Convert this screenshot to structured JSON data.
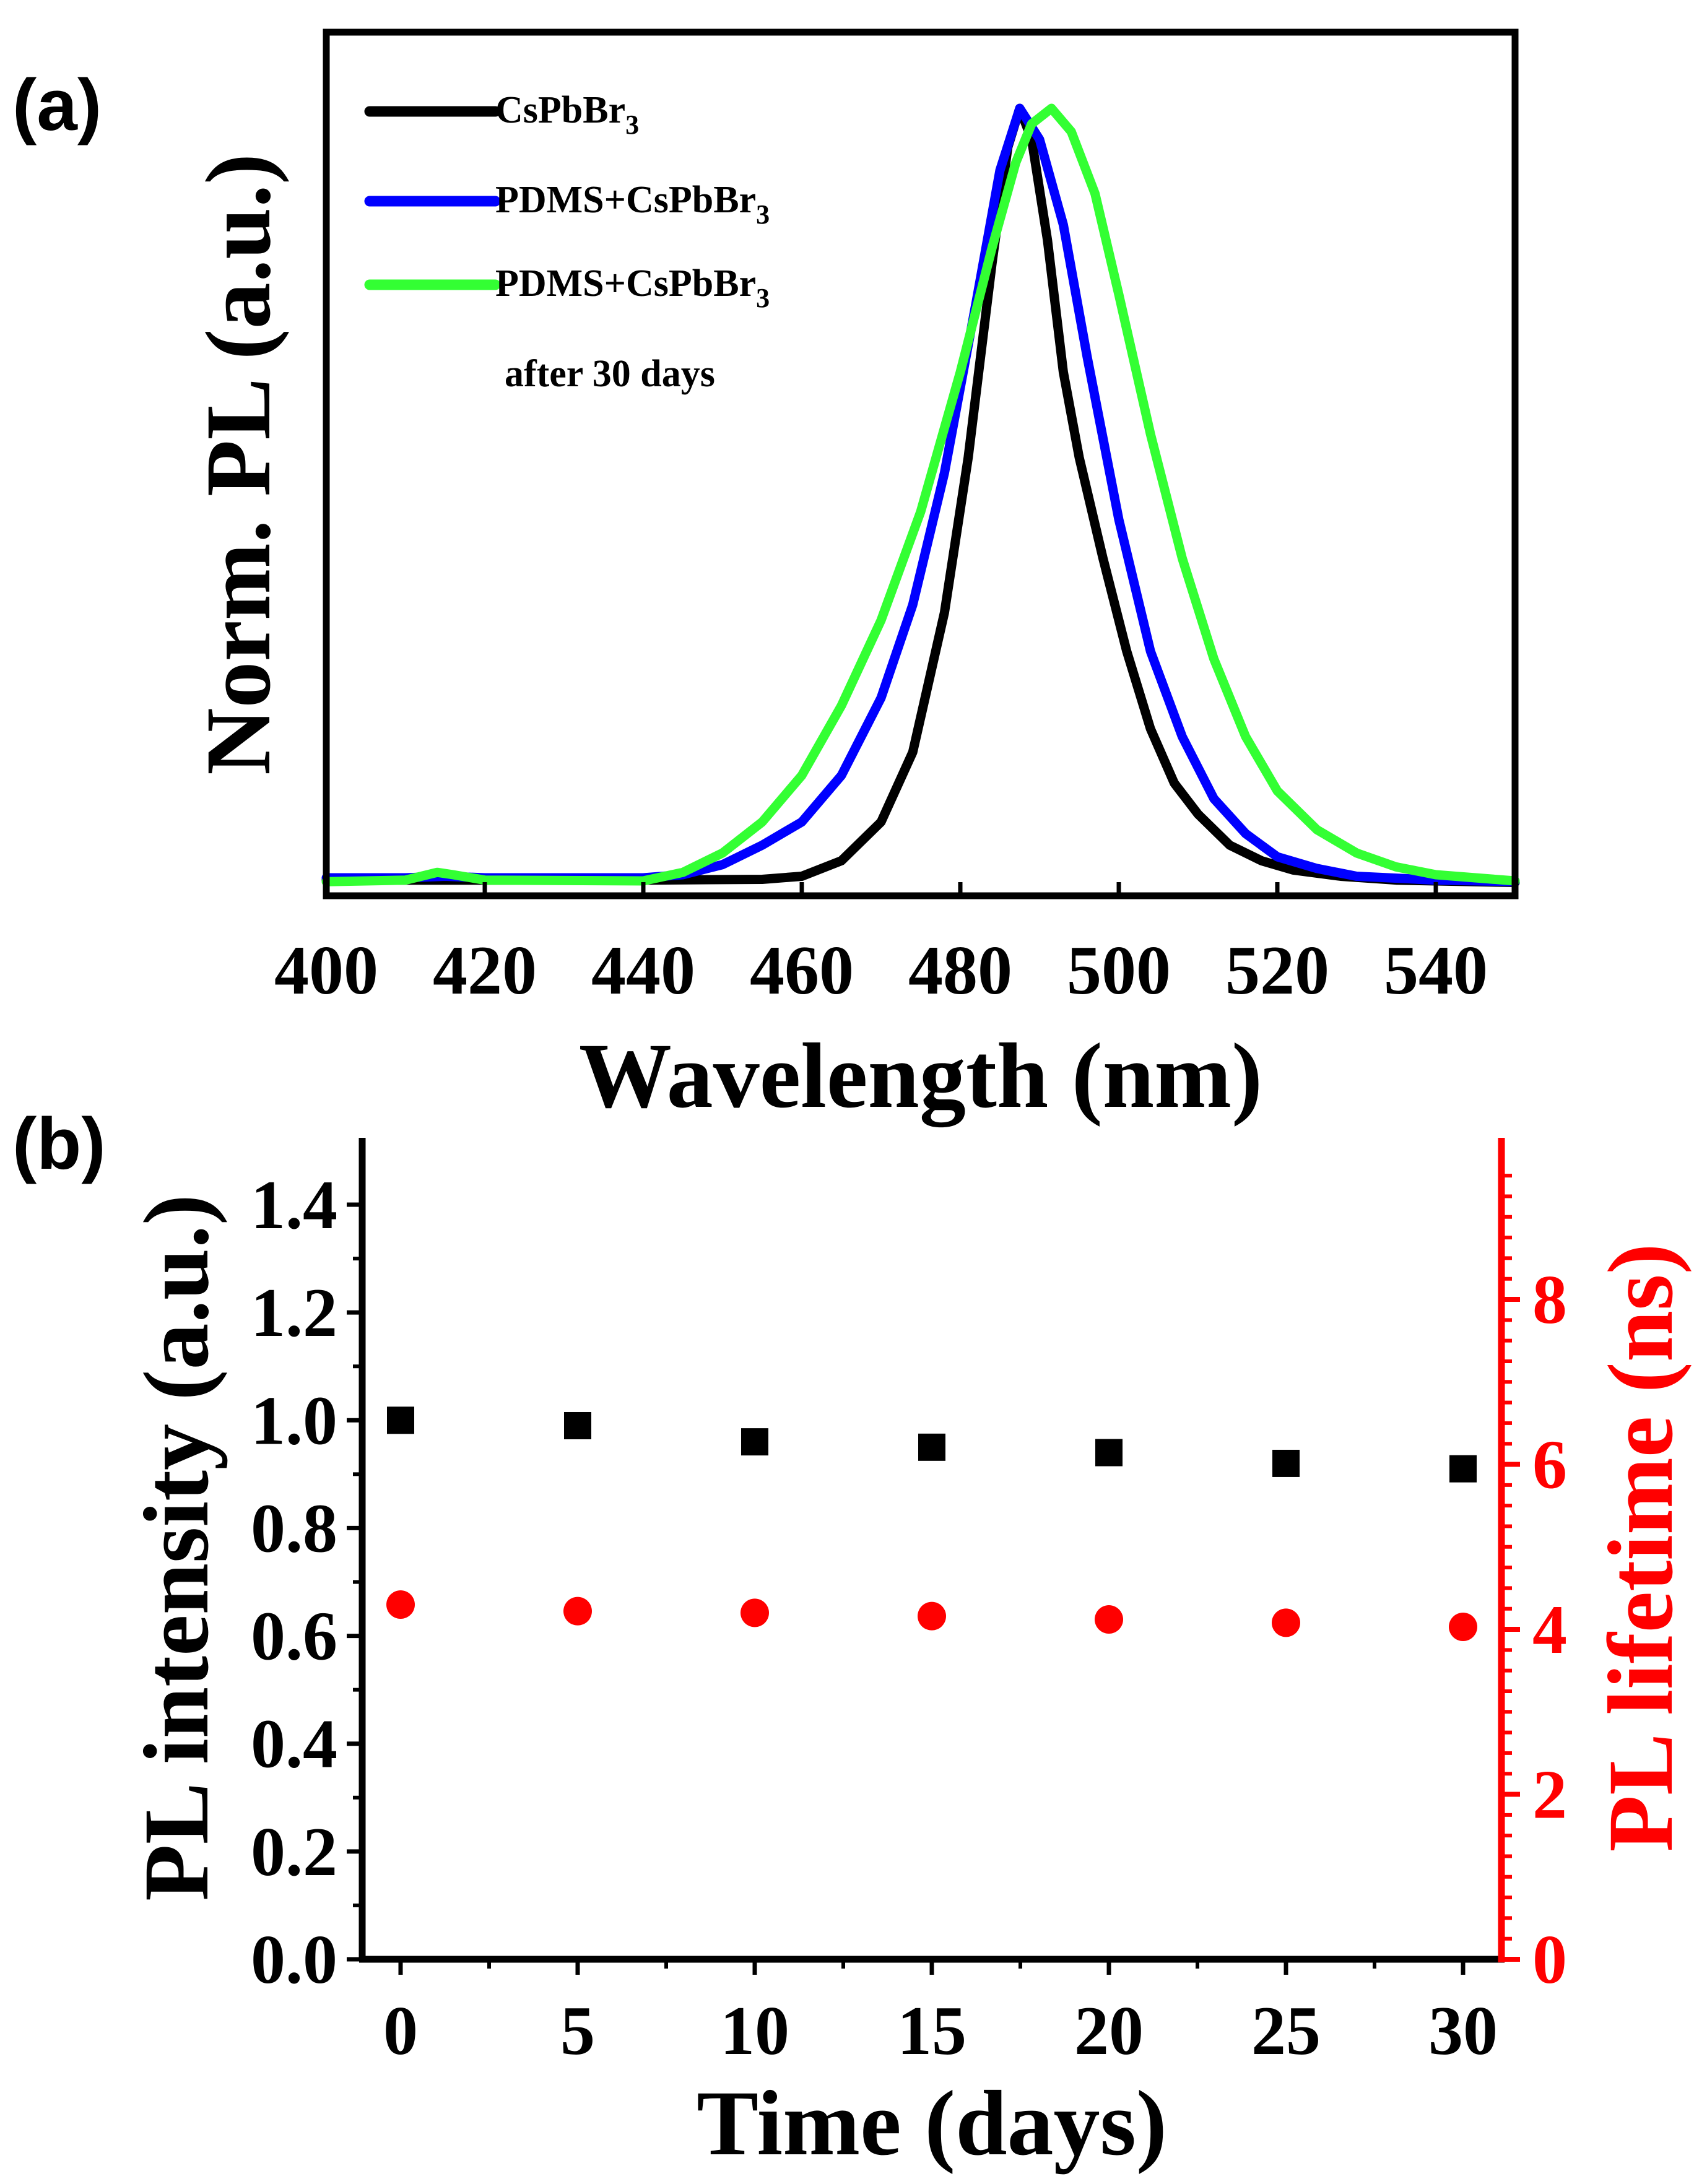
{
  "panels": {
    "a": "(a)",
    "b": "(b)"
  },
  "chart_data": [
    {
      "type": "line",
      "title": "",
      "xlabel": "Wavelength (nm)",
      "ylabel": "Norm. PL (a.u.)",
      "xlim": [
        400,
        550
      ],
      "ylim": [
        0,
        1.0
      ],
      "x_ticks": [
        "400",
        "420",
        "440",
        "460",
        "480",
        "500",
        "520",
        "540"
      ],
      "legend_position": "top-left",
      "series": [
        {
          "name": "CsPbBr3",
          "legend_main": "CsPbBr",
          "legend_sub": "3",
          "legend_note": "",
          "color": "#000000",
          "x": [
            400,
            440,
            455,
            460,
            465,
            470,
            474,
            478,
            481,
            484,
            486,
            487.5,
            489,
            491,
            493,
            495,
            498,
            501,
            504,
            507,
            510,
            514,
            518,
            522,
            528,
            535,
            550
          ],
          "y": [
            0.005,
            0.005,
            0.006,
            0.01,
            0.03,
            0.08,
            0.17,
            0.35,
            0.55,
            0.8,
            0.95,
            1.0,
            0.96,
            0.83,
            0.66,
            0.55,
            0.42,
            0.3,
            0.2,
            0.13,
            0.09,
            0.05,
            0.03,
            0.018,
            0.01,
            0.005,
            0.002
          ]
        },
        {
          "name": "PDMS+CsPbBr3",
          "legend_main": "PDMS+CsPbBr",
          "legend_sub": "3",
          "legend_note": "",
          "color": "#0000ff",
          "x": [
            400,
            410,
            415,
            420,
            440,
            445,
            450,
            455,
            460,
            465,
            470,
            474,
            478,
            482,
            485,
            487.5,
            490,
            493,
            496,
            500,
            504,
            508,
            512,
            516,
            520,
            525,
            530,
            540,
            550
          ],
          "y": [
            0.008,
            0.008,
            0.01,
            0.008,
            0.008,
            0.012,
            0.025,
            0.05,
            0.08,
            0.14,
            0.24,
            0.36,
            0.53,
            0.75,
            0.92,
            1.0,
            0.96,
            0.85,
            0.68,
            0.47,
            0.3,
            0.19,
            0.11,
            0.065,
            0.035,
            0.02,
            0.01,
            0.005,
            0.003
          ]
        },
        {
          "name": "PDMS+CsPbBr3 after 30 days",
          "legend_main": "PDMS+CsPbBr",
          "legend_sub": "3",
          "legend_note": "after 30 days",
          "color": "#33ff33",
          "x": [
            400,
            410,
            414,
            416,
            420,
            440,
            445,
            450,
            455,
            460,
            465,
            470,
            475,
            480,
            484,
            487,
            489,
            491.5,
            494,
            497,
            500,
            504,
            508,
            512,
            516,
            520,
            525,
            530,
            535,
            540,
            550
          ],
          "y": [
            0.003,
            0.005,
            0.015,
            0.012,
            0.005,
            0.004,
            0.015,
            0.04,
            0.08,
            0.14,
            0.23,
            0.34,
            0.48,
            0.66,
            0.82,
            0.93,
            0.98,
            1.0,
            0.97,
            0.89,
            0.76,
            0.58,
            0.42,
            0.29,
            0.19,
            0.12,
            0.07,
            0.04,
            0.022,
            0.012,
            0.004
          ]
        }
      ]
    },
    {
      "type": "scatter",
      "title": "",
      "xlabel": "Time (days)",
      "ylabel": "PL intensity (a.u.)",
      "y2label": "PL lifetime (ns)",
      "xlim": [
        -2,
        31
      ],
      "ylim": [
        0,
        1.5
      ],
      "y2lim": [
        0,
        9.7
      ],
      "x_ticks": [
        "0",
        "5",
        "10",
        "15",
        "20",
        "25",
        "30"
      ],
      "y_ticks": [
        "0.0",
        "0.2",
        "0.4",
        "0.6",
        "0.8",
        "1.0",
        "1.2",
        "1.4"
      ],
      "y2_ticks": [
        "0",
        "2",
        "4",
        "6",
        "8"
      ],
      "y2_color": "#ff0000",
      "series": [
        {
          "name": "PL intensity",
          "axis": "left",
          "marker": "square",
          "color": "#000000",
          "x": [
            0,
            5,
            10,
            15,
            20,
            25,
            30
          ],
          "y": [
            1.0,
            0.99,
            0.96,
            0.95,
            0.94,
            0.92,
            0.91
          ]
        },
        {
          "name": "PL lifetime",
          "axis": "right",
          "marker": "circle",
          "color": "#ff0000",
          "x": [
            0,
            5,
            10,
            15,
            20,
            25,
            30
          ],
          "y": [
            4.3,
            4.22,
            4.2,
            4.16,
            4.12,
            4.08,
            4.03
          ]
        }
      ]
    }
  ]
}
